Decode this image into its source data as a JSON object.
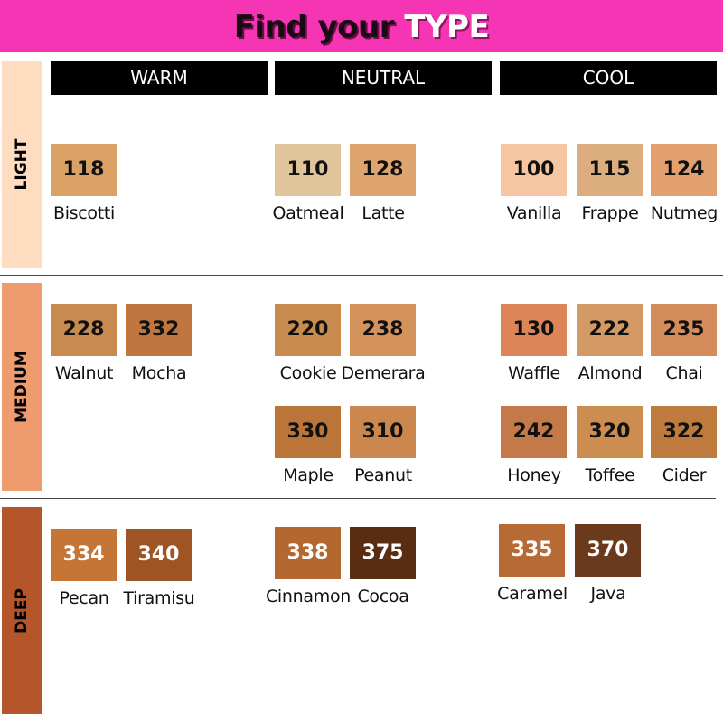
{
  "title": {
    "part1": "Find your",
    "part2": "TYPE"
  },
  "colors": {
    "banner": "#f535b4",
    "light_band": "#fddcbf",
    "medium_band": "#ee9b6e",
    "deep_band": "#b5562a"
  },
  "columns": [
    "WARM",
    "NEUTRAL",
    "COOL"
  ],
  "rows": [
    "LIGHT",
    "MEDIUM",
    "DEEP"
  ],
  "shades": [
    {
      "code": "118",
      "name": "Biscotti",
      "row": "LIGHT",
      "type": "WARM",
      "color": "#d9a166"
    },
    {
      "code": "110",
      "name": "Oatmeal",
      "row": "LIGHT",
      "type": "NEUTRAL",
      "color": "#e0c49a"
    },
    {
      "code": "128",
      "name": "Latte",
      "row": "LIGHT",
      "type": "NEUTRAL",
      "color": "#dfa56f"
    },
    {
      "code": "100",
      "name": "Vanilla",
      "row": "LIGHT",
      "type": "COOL",
      "color": "#f6c6a2"
    },
    {
      "code": "115",
      "name": "Frappe",
      "row": "LIGHT",
      "type": "COOL",
      "color": "#dcad7e"
    },
    {
      "code": "124",
      "name": "Nutmeg",
      "row": "LIGHT",
      "type": "COOL",
      "color": "#e3a06f"
    },
    {
      "code": "228",
      "name": "Walnut",
      "row": "MEDIUM",
      "type": "WARM",
      "color": "#c98a4f"
    },
    {
      "code": "332",
      "name": "Mocha",
      "row": "MEDIUM",
      "type": "WARM",
      "color": "#c0773f"
    },
    {
      "code": "220",
      "name": "Cookie",
      "row": "MEDIUM",
      "type": "NEUTRAL",
      "color": "#c98c4e"
    },
    {
      "code": "238",
      "name": "Demerara",
      "row": "MEDIUM",
      "type": "NEUTRAL",
      "color": "#d4935a"
    },
    {
      "code": "130",
      "name": "Waffle",
      "row": "MEDIUM",
      "type": "COOL",
      "color": "#dc8556"
    },
    {
      "code": "222",
      "name": "Almond",
      "row": "MEDIUM",
      "type": "COOL",
      "color": "#d49a65"
    },
    {
      "code": "235",
      "name": "Chai",
      "row": "MEDIUM",
      "type": "COOL",
      "color": "#d48d5a"
    },
    {
      "code": "330",
      "name": "Maple",
      "row": "MEDIUM",
      "type": "NEUTRAL",
      "color": "#bb7538"
    },
    {
      "code": "310",
      "name": "Peanut",
      "row": "MEDIUM",
      "type": "NEUTRAL",
      "color": "#cc874e"
    },
    {
      "code": "242",
      "name": "Honey",
      "row": "MEDIUM",
      "type": "COOL",
      "color": "#c47a48"
    },
    {
      "code": "320",
      "name": "Toffee",
      "row": "MEDIUM",
      "type": "COOL",
      "color": "#cd8c50"
    },
    {
      "code": "322",
      "name": "Cider",
      "row": "MEDIUM",
      "type": "COOL",
      "color": "#bf7a3d"
    },
    {
      "code": "334",
      "name": "Pecan",
      "row": "DEEP",
      "type": "WARM",
      "color": "#c57636"
    },
    {
      "code": "340",
      "name": "Tiramisu",
      "row": "DEEP",
      "type": "WARM",
      "color": "#9e5423"
    },
    {
      "code": "338",
      "name": "Cinnamon",
      "row": "DEEP",
      "type": "NEUTRAL",
      "color": "#b46830"
    },
    {
      "code": "375",
      "name": "Cocoa",
      "row": "DEEP",
      "type": "NEUTRAL",
      "color": "#5a2d12"
    },
    {
      "code": "335",
      "name": "Caramel",
      "row": "DEEP",
      "type": "COOL",
      "color": "#b86a35"
    },
    {
      "code": "370",
      "name": "Java",
      "row": "DEEP",
      "type": "COOL",
      "color": "#6b3a1c"
    }
  ]
}
